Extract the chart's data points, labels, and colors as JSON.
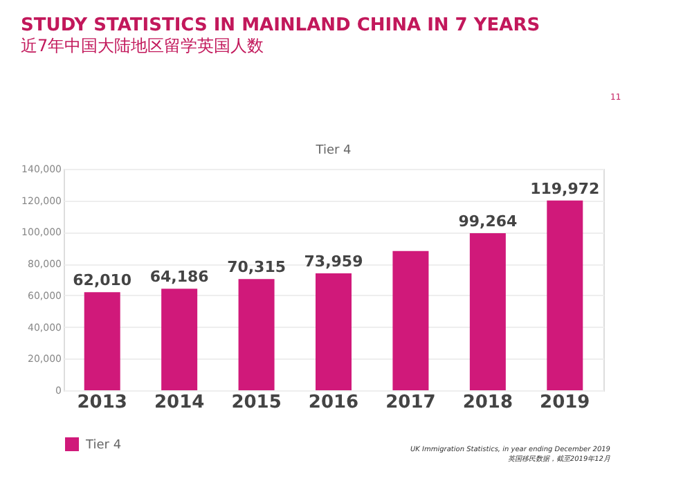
{
  "chart_data": {
    "type": "bar",
    "title": "STUDY STATISTICS IN MAINLAND CHINA IN 7 YEARS",
    "subtitle": "近7年中国大陆地区留学英国人数",
    "categories": [
      "2013",
      "2014",
      "2015",
      "2016",
      "2017",
      "2018",
      "2019"
    ],
    "series": [
      {
        "name": "Tier 4",
        "color": "#d0197a",
        "values": [
          62010,
          64186,
          70315,
          73959,
          88000,
          99264,
          119972
        ]
      }
    ],
    "value_labels": [
      "62,010",
      "64,186",
      "70,315",
      "73,959",
      null,
      "99,264",
      "119,972"
    ],
    "ylim": [
      0,
      140000
    ],
    "yticks": [
      {
        "value": 0,
        "label": "0"
      },
      {
        "value": 20000,
        "label": "20,000"
      },
      {
        "value": 40000,
        "label": "40,000"
      },
      {
        "value": 60000,
        "label": "60,000"
      },
      {
        "value": 80000,
        "label": "80,000"
      },
      {
        "value": 100000,
        "label": "100,000"
      },
      {
        "value": 120000,
        "label": "120,000"
      },
      {
        "value": 140000,
        "label": "140,000"
      }
    ],
    "grid": "y",
    "legend": "bottom",
    "annotations": [
      "11",
      "Tier 4",
      "UK Immigration Statistics, in year ending December 2019",
      "英国移民数据，截至2019年12月"
    ]
  }
}
